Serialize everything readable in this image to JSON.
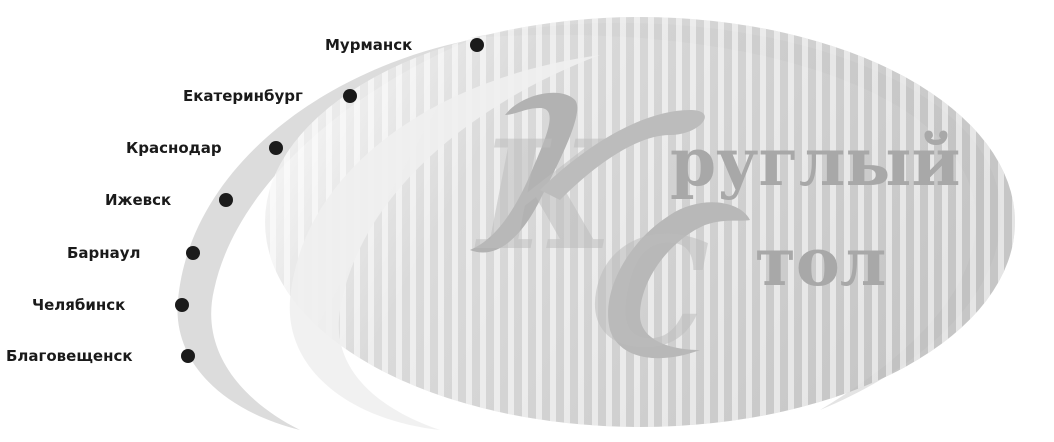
{
  "cities": [
    {
      "name": "Мурманск"
    },
    {
      "name": "Екатеринбург"
    },
    {
      "name": "Краснодар"
    },
    {
      "name": "Ижевск"
    },
    {
      "name": "Барнаул"
    },
    {
      "name": "Челябинск"
    },
    {
      "name": "Благовещенск"
    }
  ],
  "logo": {
    "word1": "руглый",
    "word2": "тол",
    "initial1": "К",
    "initial2": "С"
  },
  "colors": {
    "dot": "#1b1b1b",
    "label": "#1a1a1a",
    "logo_text": "#a8a8a8",
    "ellipse": "#c9c9c9"
  }
}
